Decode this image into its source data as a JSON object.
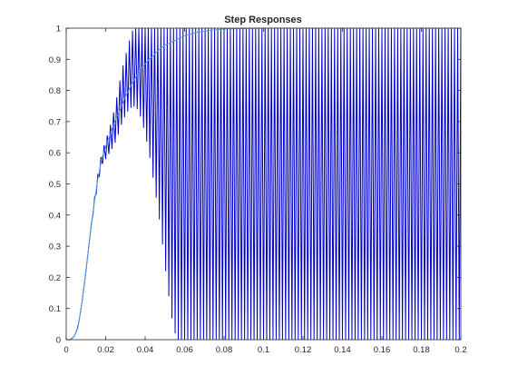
{
  "chart_data": {
    "type": "line",
    "title": "Step Responses",
    "xlabel": "",
    "ylabel": "",
    "xlim": [
      0,
      0.2
    ],
    "ylim": [
      0,
      1
    ],
    "x_ticks": [
      0,
      0.02,
      0.04,
      0.06,
      0.08,
      0.1,
      0.12,
      0.14,
      0.16,
      0.18,
      0.2
    ],
    "x_tick_labels": [
      "0",
      "0.02",
      "0.04",
      "0.06",
      "0.08",
      "0.1",
      "0.12",
      "0.14",
      "0.16",
      "0.18",
      "0.2"
    ],
    "y_ticks": [
      0,
      0.1,
      0.2,
      0.3,
      0.4,
      0.5,
      0.6,
      0.7,
      0.8,
      0.9,
      1
    ],
    "y_tick_labels": [
      "0",
      "0.1",
      "0.2",
      "0.3",
      "0.4",
      "0.5",
      "0.6",
      "0.7",
      "0.8",
      "0.9",
      "1"
    ],
    "grid": false,
    "legend": "none",
    "series": [
      {
        "color": "#0000cc",
        "style": "oscillating step response (chattering between 0 and 1)",
        "x": [
          0,
          0.002,
          0.004,
          0.006,
          0.008,
          0.01,
          0.012,
          0.014,
          0.016,
          0.018,
          0.02,
          0.022,
          0.024,
          0.026,
          0.028,
          0.03,
          0.032,
          0.034,
          0.036,
          0.038,
          0.04,
          0.042,
          0.044,
          0.046,
          0.048,
          0.05,
          0.052,
          0.054,
          0.056,
          0.058,
          0.06
        ],
        "upper": [
          0,
          0,
          0.01,
          0.04,
          0.12,
          0.22,
          0.33,
          0.44,
          0.53,
          0.6,
          0.64,
          0.68,
          0.73,
          0.79,
          0.86,
          0.91,
          0.96,
          1,
          1,
          1,
          1,
          1,
          1,
          1,
          1,
          1,
          1,
          1,
          1,
          1,
          1
        ],
        "lower": [
          0,
          0,
          0.01,
          0.04,
          0.12,
          0.22,
          0.33,
          0.42,
          0.5,
          0.56,
          0.58,
          0.6,
          0.62,
          0.65,
          0.69,
          0.72,
          0.74,
          0.75,
          0.74,
          0.71,
          0.66,
          0.6,
          0.52,
          0.44,
          0.35,
          0.24,
          0.14,
          0.05,
          0,
          0,
          0
        ]
      },
      {
        "color": "#4a9ed6",
        "style": "smooth step response",
        "x": [
          0,
          0.002,
          0.004,
          0.006,
          0.008,
          0.01,
          0.012,
          0.014,
          0.016,
          0.018,
          0.02,
          0.022,
          0.024,
          0.026,
          0.028,
          0.03,
          0.032,
          0.034,
          0.036,
          0.038,
          0.04,
          0.042,
          0.044,
          0.046,
          0.048,
          0.05,
          0.055,
          0.06,
          0.065,
          0.07,
          0.075,
          0.08,
          0.085,
          0.09,
          0.1,
          0.12,
          0.14,
          0.16,
          0.18,
          0.2
        ],
        "y": [
          0,
          0,
          0.01,
          0.04,
          0.12,
          0.22,
          0.33,
          0.43,
          0.515,
          0.58,
          0.62,
          0.655,
          0.69,
          0.72,
          0.75,
          0.78,
          0.805,
          0.83,
          0.85,
          0.87,
          0.885,
          0.9,
          0.91,
          0.925,
          0.935,
          0.945,
          0.96,
          0.975,
          0.985,
          0.99,
          0.994,
          0.997,
          0.998,
          0.999,
          1,
          1,
          1,
          1,
          1,
          1
        ]
      }
    ]
  }
}
